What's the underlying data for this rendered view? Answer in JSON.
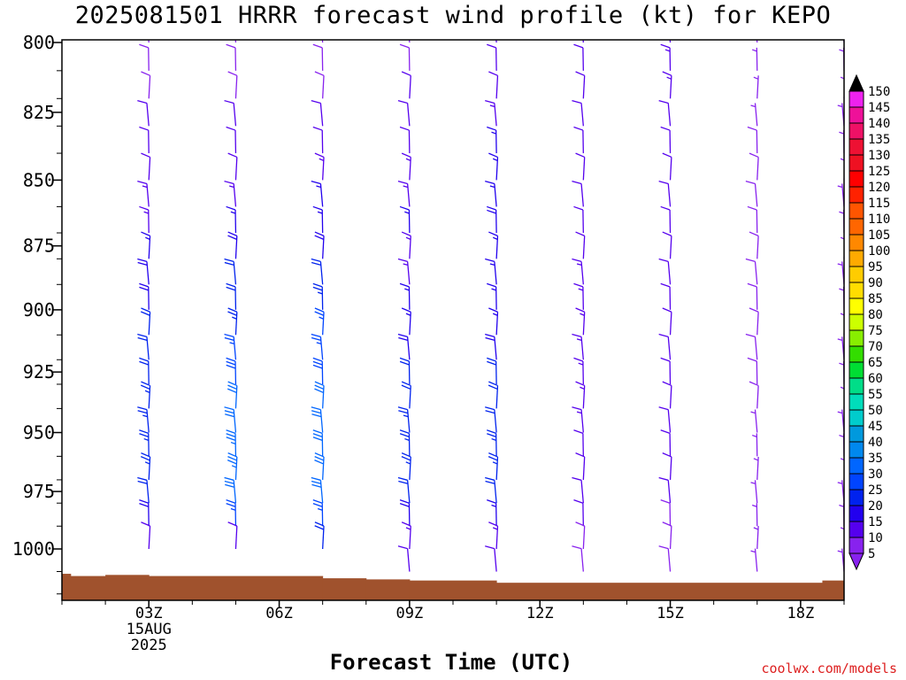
{
  "chart_data": {
    "type": "wind_barb_time_height",
    "title": "2025081501 HRRR forecast wind profile (kt) for KEPO",
    "xlabel": "Forecast Time (UTC)",
    "y_ticks": [
      800,
      825,
      850,
      875,
      900,
      925,
      950,
      975,
      1000
    ],
    "ylim": [
      800,
      1020
    ],
    "x_ticks": [
      {
        "hour": 3,
        "label": "03Z",
        "date": "15AUG",
        "year": "2025"
      },
      {
        "hour": 6,
        "label": "06Z"
      },
      {
        "hour": 9,
        "label": "09Z"
      },
      {
        "hour": 12,
        "label": "12Z"
      },
      {
        "hour": 15,
        "label": "15Z"
      },
      {
        "hour": 18,
        "label": "18Z"
      }
    ],
    "xlim": [
      1,
      19
    ],
    "profile_hours": [
      3,
      5,
      7,
      9,
      11,
      13,
      15,
      17,
      19
    ],
    "wind_levels_hpa": [
      800,
      810,
      820,
      830,
      840,
      850,
      860,
      870,
      880,
      890,
      900,
      910,
      920,
      930,
      940,
      950,
      960,
      970,
      980,
      990,
      1000,
      1010
    ],
    "speed_profiles_kt": [
      [
        8,
        8,
        9,
        10,
        11,
        12,
        13,
        14,
        16,
        18,
        19,
        20,
        21,
        22,
        23,
        24,
        24,
        24,
        22,
        18,
        10,
        null
      ],
      [
        8,
        8,
        9,
        10,
        11,
        12,
        14,
        16,
        18,
        20,
        22,
        24,
        26,
        28,
        30,
        32,
        34,
        33,
        30,
        25,
        12,
        null
      ],
      [
        6,
        8,
        9,
        10,
        11,
        13,
        15,
        17,
        19,
        21,
        23,
        25,
        27,
        29,
        30,
        31,
        32,
        32,
        30,
        25,
        20,
        null
      ],
      [
        8,
        9,
        10,
        11,
        12,
        13,
        14,
        15,
        14,
        13,
        15,
        17,
        19,
        21,
        22,
        23,
        24,
        24,
        22,
        18,
        14,
        10
      ],
      [
        10,
        11,
        12,
        14,
        15,
        16,
        17,
        18,
        17,
        16,
        15,
        17,
        19,
        20,
        21,
        22,
        23,
        23,
        21,
        17,
        13,
        10
      ],
      [
        10,
        10,
        10,
        11,
        11,
        12,
        12,
        12,
        12,
        13,
        13,
        13,
        14,
        14,
        14,
        13,
        12,
        12,
        11,
        10,
        9,
        8
      ],
      [
        14,
        13,
        13,
        12,
        12,
        12,
        12,
        12,
        12,
        12,
        12,
        12,
        12,
        12,
        12,
        11,
        11,
        10,
        10,
        9,
        9,
        8
      ],
      [
        7,
        7,
        7,
        7,
        8,
        8,
        8,
        8,
        8,
        8,
        8,
        8,
        8,
        8,
        8,
        7,
        7,
        7,
        6,
        6,
        6,
        5
      ],
      [
        5,
        5,
        6,
        6,
        7,
        7,
        7,
        7,
        7,
        7,
        7,
        7,
        7,
        7,
        7,
        6,
        6,
        6,
        6,
        5,
        5,
        5
      ]
    ],
    "surface_pressure_hpa": [
      {
        "from": 1,
        "to": 1.2,
        "p": 1011
      },
      {
        "from": 1.2,
        "to": 2,
        "p": 1012
      },
      {
        "from": 2,
        "to": 3,
        "p": 1011.5
      },
      {
        "from": 3,
        "to": 7,
        "p": 1012
      },
      {
        "from": 7,
        "to": 8,
        "p": 1013
      },
      {
        "from": 8,
        "to": 9,
        "p": 1013.5
      },
      {
        "from": 9,
        "to": 11,
        "p": 1014
      },
      {
        "from": 11,
        "to": 18.5,
        "p": 1015
      },
      {
        "from": 18.5,
        "to": 19,
        "p": 1014
      }
    ],
    "ground_color": "#a0522d",
    "colorbar": {
      "labels": [
        "150",
        "145",
        "140",
        "135",
        "130",
        "125",
        "120",
        "115",
        "110",
        "105",
        "100",
        "95",
        "90",
        "85",
        "80",
        "75",
        "70",
        "65",
        "60",
        "55",
        "50",
        "45",
        "40",
        "35",
        "30",
        "25",
        "20",
        "15",
        "10",
        "5"
      ],
      "colors": [
        "#000000",
        "#ee22ee",
        "#ee1199",
        "#ee1166",
        "#ee1133",
        "#ee1122",
        "#ff0000",
        "#ff2200",
        "#ff5500",
        "#ff6600",
        "#ff8800",
        "#ffaa00",
        "#ffcc00",
        "#ffdd00",
        "#ffff00",
        "#ccff00",
        "#88ee00",
        "#33dd00",
        "#00dd33",
        "#00dd88",
        "#00ddbb",
        "#00cccc",
        "#0099dd",
        "#0088ee",
        "#0066ff",
        "#0044ff",
        "#0022ee",
        "#2200ee",
        "#5500ee",
        "#8822ee"
      ]
    }
  },
  "credit": "coolwx.com/models"
}
